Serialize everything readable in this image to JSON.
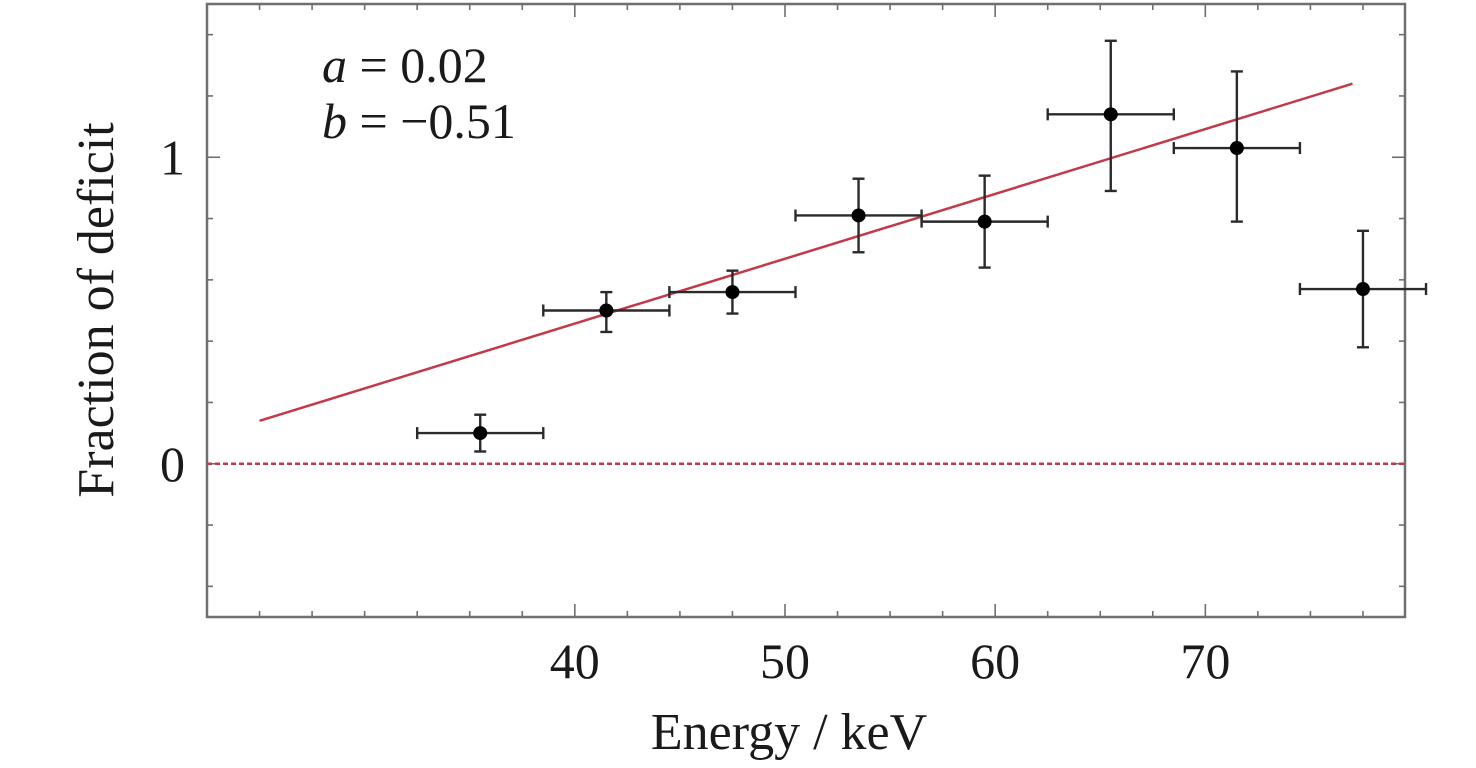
{
  "chart_data": {
    "type": "scatter",
    "xlabel": "Energy / keV",
    "ylabel": "Fraction of deficit",
    "xlim": [
      22.5,
      79.5
    ],
    "ylim": [
      -0.5,
      1.5
    ],
    "x_ticks": [
      40,
      50,
      60,
      70
    ],
    "y_ticks": [
      0,
      1
    ],
    "x_minor_step": 2.5,
    "y_minor_step": 0.2,
    "grid": false,
    "annotations": [
      {
        "var": "a",
        "rest": " = 0.02"
      },
      {
        "var": "b",
        "rest": " = −0.51"
      }
    ],
    "points": [
      {
        "x": 35.5,
        "y": 0.1,
        "xerr": 3.0,
        "yerr_low": 0.06,
        "yerr_high": 0.06
      },
      {
        "x": 41.5,
        "y": 0.5,
        "xerr": 3.0,
        "yerr_low": 0.07,
        "yerr_high": 0.06
      },
      {
        "x": 47.5,
        "y": 0.56,
        "xerr": 3.0,
        "yerr_low": 0.07,
        "yerr_high": 0.07
      },
      {
        "x": 53.5,
        "y": 0.81,
        "xerr": 3.0,
        "yerr_low": 0.12,
        "yerr_high": 0.12
      },
      {
        "x": 59.5,
        "y": 0.79,
        "xerr": 3.0,
        "yerr_low": 0.15,
        "yerr_high": 0.15
      },
      {
        "x": 65.5,
        "y": 1.14,
        "xerr": 3.0,
        "yerr_low": 0.25,
        "yerr_high": 0.24
      },
      {
        "x": 71.5,
        "y": 1.03,
        "xerr": 3.0,
        "yerr_low": 0.24,
        "yerr_high": 0.25
      },
      {
        "x": 77.5,
        "y": 0.57,
        "xerr": 3.0,
        "yerr_low": 0.19,
        "yerr_high": 0.19
      }
    ],
    "fit_line": {
      "x": [
        25,
        77
      ],
      "y": [
        0.14,
        1.24
      ],
      "color": "#c23a4a"
    },
    "reference_line": {
      "y": 0,
      "style": "dashed",
      "color": "#c23a4a"
    }
  }
}
